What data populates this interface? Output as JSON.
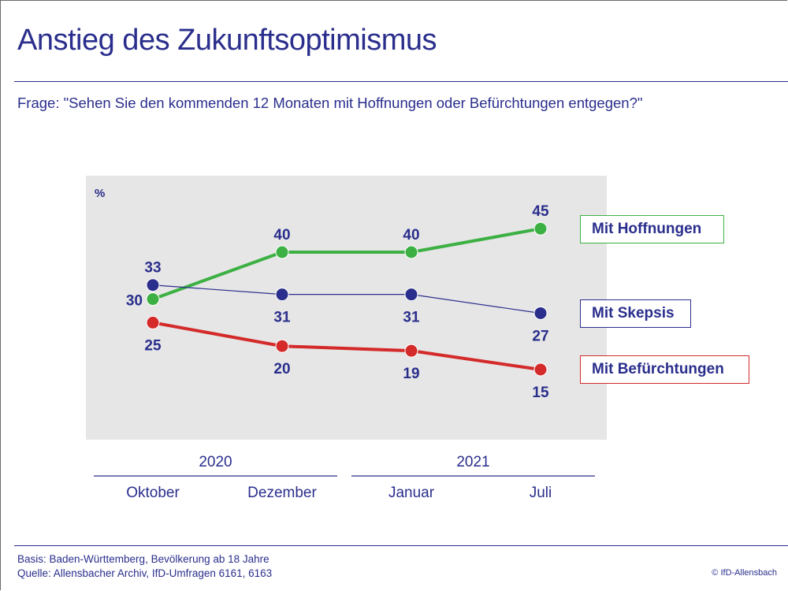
{
  "title": "Anstieg des Zukunftsoptimismus",
  "question": "Frage: \"Sehen Sie den kommenden 12 Monaten mit Hoffnungen oder Befürchtungen entgegen?\"",
  "footer": {
    "basis": "Basis: Baden-Württemberg, Bevölkerung ab 18 Jahre",
    "quelle": "Quelle: Allensbacher Archiv, IfD-Umfragen 6161, 6163",
    "copyright": "© IfD-Allensbach"
  },
  "colors": {
    "text": "#2a2e8c",
    "plot_bg": "#e6e6e6",
    "hoffnungen": "#3cb043",
    "skepsis": "#2a2e8c",
    "befuerchtungen": "#d42a2a"
  },
  "chart_data": {
    "type": "line",
    "title": "Anstieg des Zukunftsoptimismus",
    "ylabel": "%",
    "xlabel": "",
    "categories": [
      "Oktober",
      "Dezember",
      "Januar",
      "Juli"
    ],
    "year_groups": [
      {
        "label": "2020",
        "categories": [
          "Oktober",
          "Dezember"
        ]
      },
      {
        "label": "2021",
        "categories": [
          "Januar",
          "Juli"
        ]
      }
    ],
    "series": [
      {
        "name": "Mit Hoffnungen",
        "key": "hoffnungen",
        "values": [
          30,
          40,
          40,
          45
        ],
        "label_pos": [
          "left",
          "above",
          "above",
          "above"
        ]
      },
      {
        "name": "Mit Skepsis",
        "key": "skepsis",
        "values": [
          33,
          31,
          31,
          27
        ],
        "label_pos": [
          "above",
          "below",
          "below",
          "below"
        ]
      },
      {
        "name": "Mit Befürchtungen",
        "key": "befuerchtungen",
        "values": [
          25,
          20,
          19,
          15
        ],
        "label_pos": [
          "below",
          "below",
          "below",
          "below"
        ]
      }
    ],
    "ylim": [
      10,
      50
    ],
    "grid": false,
    "legend": "right"
  }
}
